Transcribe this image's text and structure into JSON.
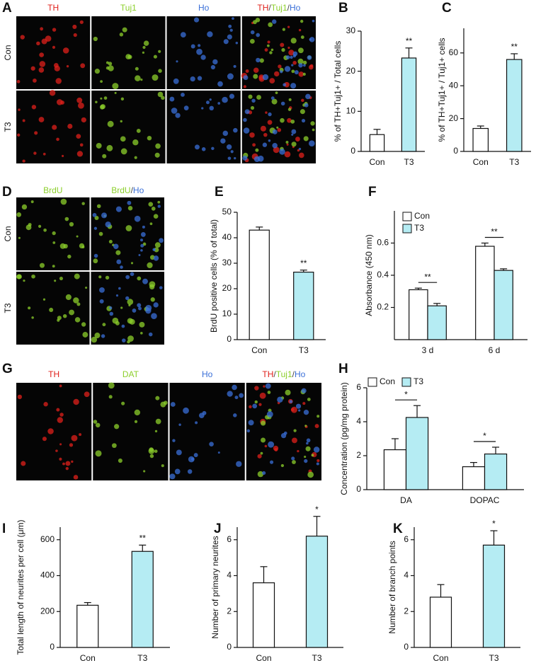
{
  "panel_labels": [
    "A",
    "B",
    "C",
    "D",
    "E",
    "F",
    "G",
    "H",
    "I",
    "J",
    "K"
  ],
  "image_panels": [
    {
      "rows": [
        "Con",
        "T3"
      ],
      "columns": [
        [
          {
            "text": "TH",
            "color": "#e0201b"
          }
        ],
        [
          {
            "text": "Tuj1",
            "color": "#8ccf2b"
          }
        ],
        [
          {
            "text": "Ho",
            "color": "#3a6fd8"
          }
        ],
        [
          {
            "text": "TH",
            "color": "#e0201b"
          },
          {
            "text": "/",
            "color": "#444444"
          },
          {
            "text": "Tuj1",
            "color": "#8ccf2b"
          },
          {
            "text": "/",
            "color": "#444444"
          },
          {
            "text": "Ho",
            "color": "#3a6fd8"
          }
        ]
      ]
    },
    {
      "rows": [
        "Con",
        "T3"
      ],
      "columns": [
        [
          {
            "text": "BrdU",
            "color": "#8ccf2b"
          }
        ],
        [
          {
            "text": "BrdU",
            "color": "#8ccf2b"
          },
          {
            "text": "/",
            "color": "#444444"
          },
          {
            "text": "Ho",
            "color": "#3a6fd8"
          }
        ]
      ]
    },
    {
      "rows": [],
      "columns": [
        [
          {
            "text": "TH",
            "color": "#e0201b"
          }
        ],
        [
          {
            "text": "DAT",
            "color": "#8ccf2b"
          }
        ],
        [
          {
            "text": "Ho",
            "color": "#3a6fd8"
          }
        ],
        [
          {
            "text": "TH",
            "color": "#e0201b"
          },
          {
            "text": "/",
            "color": "#444444"
          },
          {
            "text": "Tuj1",
            "color": "#8ccf2b"
          },
          {
            "text": "/",
            "color": "#444444"
          },
          {
            "text": "Ho",
            "color": "#3a6fd8"
          }
        ]
      ]
    }
  ],
  "chart_data": [
    {
      "type": "bar",
      "ylabel": "% of TH+Tuj1+ / Total cells",
      "categories": [
        "Con",
        "T3"
      ],
      "values": [
        4.2,
        23.3
      ],
      "errors": [
        1.3,
        2.5
      ],
      "colors": [
        "#ffffff",
        "#b5ecf3"
      ],
      "significance": [
        null,
        "**"
      ],
      "ylim": [
        0,
        30
      ],
      "yticks": [
        0,
        10,
        20,
        30
      ]
    },
    {
      "type": "bar",
      "ylabel": "% of TH+Tuj1+ / Tuj1+ cells",
      "categories": [
        "Con",
        "T3"
      ],
      "values": [
        14,
        56
      ],
      "errors": [
        1.5,
        3.5
      ],
      "colors": [
        "#ffffff",
        "#b5ecf3"
      ],
      "significance": [
        null,
        "**"
      ],
      "ylim": [
        0,
        75
      ],
      "yticks": [
        0,
        20,
        40,
        60
      ]
    },
    {
      "type": "bar",
      "ylabel": "BrdU positive cells (% of total)",
      "categories": [
        "Con",
        "T3"
      ],
      "values": [
        43,
        26.5
      ],
      "errors": [
        1.2,
        0.8
      ],
      "colors": [
        "#ffffff",
        "#b5ecf3"
      ],
      "significance": [
        null,
        "**"
      ],
      "ylim": [
        0,
        50
      ],
      "yticks": [
        0,
        10,
        20,
        30,
        40,
        50
      ]
    },
    {
      "type": "grouped-bar",
      "ylabel": "Absorbance (450 nm)",
      "categories": [
        "3 d",
        "6 d"
      ],
      "series": [
        {
          "name": "Con",
          "color": "#ffffff",
          "values": [
            0.31,
            0.58
          ],
          "errors": [
            0.01,
            0.02
          ]
        },
        {
          "name": "T3",
          "color": "#b5ecf3",
          "values": [
            0.21,
            0.43
          ],
          "errors": [
            0.015,
            0.01
          ]
        }
      ],
      "significance": [
        "**",
        "**"
      ],
      "legend": "top-left",
      "ylim": [
        0,
        0.8
      ],
      "yticks": [
        0.2,
        0.4,
        0.6
      ]
    },
    {
      "type": "grouped-bar",
      "ylabel": "Concentration (pg/mg protein)",
      "categories": [
        "DA",
        "DOPAC"
      ],
      "series": [
        {
          "name": "Con",
          "color": "#ffffff",
          "values": [
            2.35,
            1.35
          ],
          "errors": [
            0.65,
            0.25
          ]
        },
        {
          "name": "T3",
          "color": "#b5ecf3",
          "values": [
            4.25,
            2.1
          ],
          "errors": [
            0.7,
            0.4
          ]
        }
      ],
      "significance": [
        "*",
        "*"
      ],
      "legend": "top",
      "ylim": [
        0,
        6
      ],
      "yticks": [
        0,
        2,
        4,
        6
      ]
    },
    {
      "type": "bar",
      "ylabel": "Total length of neurites per cell (μm)",
      "categories": [
        "Con",
        "T3"
      ],
      "values": [
        235,
        535
      ],
      "errors": [
        15,
        35
      ],
      "colors": [
        "#ffffff",
        "#b5ecf3"
      ],
      "significance": [
        null,
        "**"
      ],
      "ylim": [
        0,
        670
      ],
      "yticks": [
        0,
        200,
        400,
        600
      ]
    },
    {
      "type": "bar",
      "ylabel": "Number of primary neurites",
      "categories": [
        "Con",
        "T3"
      ],
      "values": [
        3.6,
        6.2
      ],
      "errors": [
        0.9,
        1.1
      ],
      "colors": [
        "#ffffff",
        "#b5ecf3"
      ],
      "significance": [
        null,
        "*"
      ],
      "ylim": [
        0,
        6.7
      ],
      "yticks": [
        0,
        2,
        4,
        6
      ]
    },
    {
      "type": "bar",
      "ylabel": "Number of branch points",
      "categories": [
        "Con",
        "T3"
      ],
      "values": [
        2.8,
        5.7
      ],
      "errors": [
        0.7,
        0.8
      ],
      "colors": [
        "#ffffff",
        "#b5ecf3"
      ],
      "significance": [
        null,
        "*"
      ],
      "ylim": [
        0,
        6.7
      ],
      "yticks": [
        0,
        2,
        4,
        6
      ]
    }
  ]
}
